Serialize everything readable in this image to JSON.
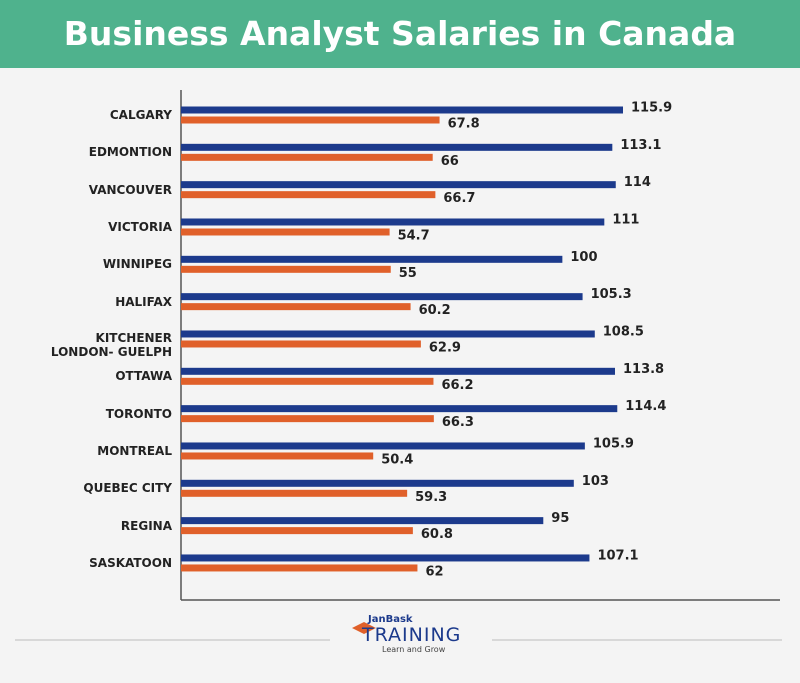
{
  "chart_data": {
    "type": "bar",
    "orientation": "horizontal",
    "title": "Business Analyst Salaries in Canada",
    "categories": [
      "CALGARY",
      "EDMONTION",
      "VANCOUVER",
      "VICTORIA",
      "WINNIPEG",
      "HALIFAX",
      "KITCHENER\nLONDON- GUELPH",
      "OTTAWA",
      "TORONTO",
      "MONTREAL",
      "QUEBEC CITY",
      "REGINA",
      "SASKATOON"
    ],
    "series": [
      {
        "color": "#1c3a8c",
        "values": [
          115.9,
          113.1,
          114,
          111,
          100,
          105.3,
          108.5,
          113.8,
          114.4,
          105.9,
          103,
          95,
          107.1
        ]
      },
      {
        "color": "#e0602a",
        "values": [
          67.8,
          66,
          66.7,
          54.7,
          55,
          60.2,
          62.9,
          66.2,
          66.3,
          50.4,
          59.3,
          60.8,
          62
        ]
      }
    ]
  },
  "footer": {
    "brand": "JanBask",
    "logo": "TRAINING",
    "tagline": "Learn and Grow"
  }
}
